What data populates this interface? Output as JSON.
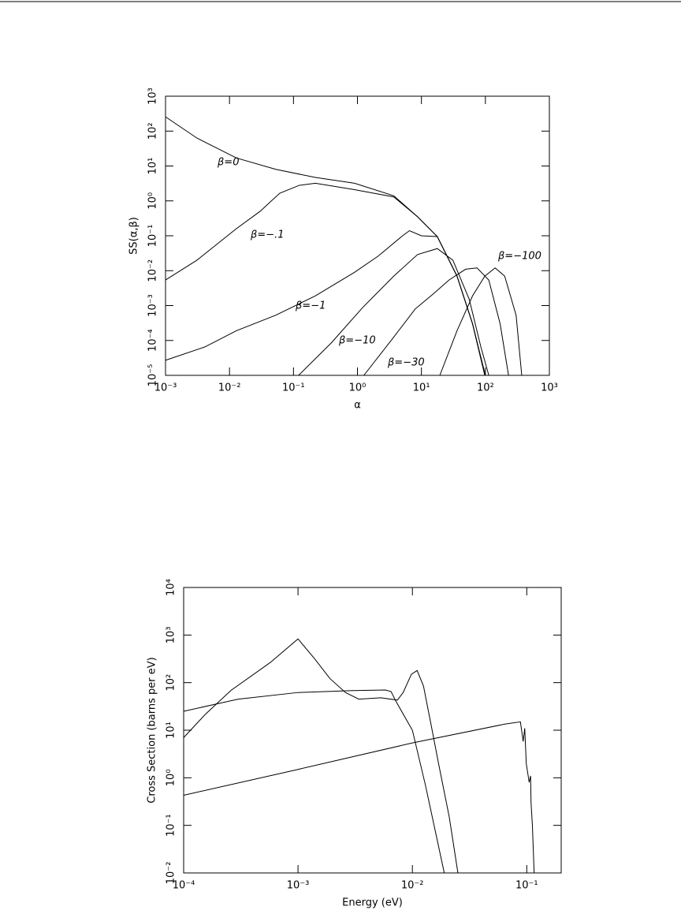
{
  "chart_data": [
    {
      "type": "line",
      "xlabel": "α",
      "ylabel": "SS(α,β)",
      "xscale": "log",
      "yscale": "log",
      "color": "#000000",
      "xlim": [
        0.001,
        1000
      ],
      "ylim": [
        1e-05,
        1000
      ],
      "xticks": [
        {
          "value": 0.001,
          "label": "10⁻³"
        },
        {
          "value": 0.01,
          "label": "10⁻²"
        },
        {
          "value": 0.1,
          "label": "10⁻¹"
        },
        {
          "value": 1,
          "label": "10⁰"
        },
        {
          "value": 10,
          "label": "10¹"
        },
        {
          "value": 100,
          "label": "10²"
        },
        {
          "value": 1000,
          "label": "10³"
        }
      ],
      "yticks": [
        {
          "value": 1e-05,
          "label": "10⁻⁵"
        },
        {
          "value": 0.0001,
          "label": "10⁻⁴"
        },
        {
          "value": 0.001,
          "label": "10⁻³"
        },
        {
          "value": 0.01,
          "label": "10⁻²"
        },
        {
          "value": 0.1,
          "label": "10⁻¹"
        },
        {
          "value": 1,
          "label": "10⁰"
        },
        {
          "value": 10,
          "label": "10¹"
        },
        {
          "value": 100,
          "label": "10²"
        },
        {
          "value": 1000,
          "label": "10³"
        }
      ],
      "series": [
        {
          "name": "β=0",
          "x": [
            0.001,
            0.0031,
            0.0128,
            0.053,
            0.22,
            0.9,
            3.7,
            8.7,
            17.7,
            36,
            63,
            98
          ],
          "values": [
            257,
            63,
            17,
            8,
            4.7,
            3.2,
            1.4,
            0.35,
            0.095,
            0.007,
            0.0003,
            1e-05
          ]
        },
        {
          "name": "β=−.1",
          "x": [
            0.001,
            0.0031,
            0.0128,
            0.03,
            0.061,
            0.124,
            0.22,
            0.9,
            3.7,
            8.7,
            17.7,
            36,
            63,
            98
          ],
          "values": [
            0.0054,
            0.02,
            0.16,
            0.5,
            1.66,
            2.8,
            3.2,
            2.1,
            1.3,
            0.35,
            0.095,
            0.007,
            0.0003,
            1e-05
          ]
        },
        {
          "name": "β=−1",
          "x": [
            0.001,
            0.0041,
            0.0128,
            0.053,
            0.22,
            0.9,
            2.1,
            4.9,
            6.5,
            10,
            17.7,
            36,
            63,
            100
          ],
          "values": [
            2.7e-05,
            6.5e-05,
            0.00019,
            0.00053,
            0.0019,
            0.009,
            0.026,
            0.095,
            0.14,
            0.1,
            0.095,
            0.007,
            0.0003,
            1e-05
          ]
        },
        {
          "name": "β=−10",
          "x": [
            0.12,
            0.39,
            1.2,
            3.7,
            8.7,
            17.7,
            31,
            56,
            85,
            113
          ],
          "values": [
            1e-05,
            8.5e-05,
            0.00087,
            0.007,
            0.029,
            0.043,
            0.02,
            0.0015,
            6.5e-05,
            1e-05
          ]
        },
        {
          "name": "β=−30",
          "x": [
            1.26,
            3.5,
            8,
            15.5,
            27,
            49,
            74,
            113,
            170,
            230
          ],
          "values": [
            1e-05,
            0.00011,
            0.0008,
            0.0022,
            0.0054,
            0.011,
            0.012,
            0.0054,
            0.0003,
            1e-05
          ]
        },
        {
          "name": "β=−100",
          "x": [
            19.4,
            36,
            63,
            98,
            142,
            200,
            302,
            370
          ],
          "values": [
            1e-05,
            0.00019,
            0.0019,
            0.007,
            0.012,
            0.007,
            0.00053,
            1e-05
          ]
        }
      ]
    },
    {
      "type": "line",
      "xlabel": "Energy (eV)",
      "ylabel": "Cross Section (barns per eV)",
      "xscale": "log",
      "yscale": "log",
      "color": "#000000",
      "xlim": [
        0.0001,
        0.2
      ],
      "ylim": [
        0.01,
        10000
      ],
      "xticks": [
        {
          "value": 0.0001,
          "label": "10⁻⁴"
        },
        {
          "value": 0.001,
          "label": "10⁻³"
        },
        {
          "value": 0.01,
          "label": "10⁻²"
        },
        {
          "value": 0.1,
          "label": "10⁻¹"
        }
      ],
      "yticks": [
        {
          "value": 0.01,
          "label": "10⁻²"
        },
        {
          "value": 0.1,
          "label": "10⁻¹"
        },
        {
          "value": 1,
          "label": "10⁰"
        },
        {
          "value": 10,
          "label": "10¹"
        },
        {
          "value": 100,
          "label": "10²"
        },
        {
          "value": 1000,
          "label": "10³"
        },
        {
          "value": 10000,
          "label": "10⁴"
        }
      ],
      "series": [
        {
          "x": [
            0.0001,
            0.000156,
            0.00026,
            0.00057,
            0.001,
            0.0014,
            0.0019,
            0.0026,
            0.0034,
            0.0053,
            0.0074,
            0.0083,
            0.0098,
            0.011,
            0.0125,
            0.0146,
            0.017,
            0.021,
            0.025
          ],
          "values": [
            7,
            22,
            69,
            263,
            830,
            316,
            122,
            62,
            45,
            48,
            43,
            62,
            150,
            180,
            85,
            12.7,
            1.9,
            0.15,
            0.01
          ]
        },
        {
          "x": [
            0.0001,
            0.0003,
            0.001,
            0.003,
            0.0058,
            0.0065,
            0.0072,
            0.01,
            0.013,
            0.019
          ],
          "values": [
            25,
            45,
            62,
            68,
            70,
            65,
            40,
            10,
            0.7,
            0.01
          ]
        },
        {
          "x": [
            0.0001,
            0.001,
            0.01,
            0.065,
            0.088,
            0.093,
            0.096,
            0.099,
            0.105,
            0.108,
            0.109,
            0.112,
            0.116
          ],
          "values": [
            0.43,
            1.5,
            5.4,
            13.5,
            15,
            5.8,
            11,
            2,
            0.8,
            1.1,
            0.3,
            0.1,
            0.01
          ]
        }
      ]
    }
  ]
}
